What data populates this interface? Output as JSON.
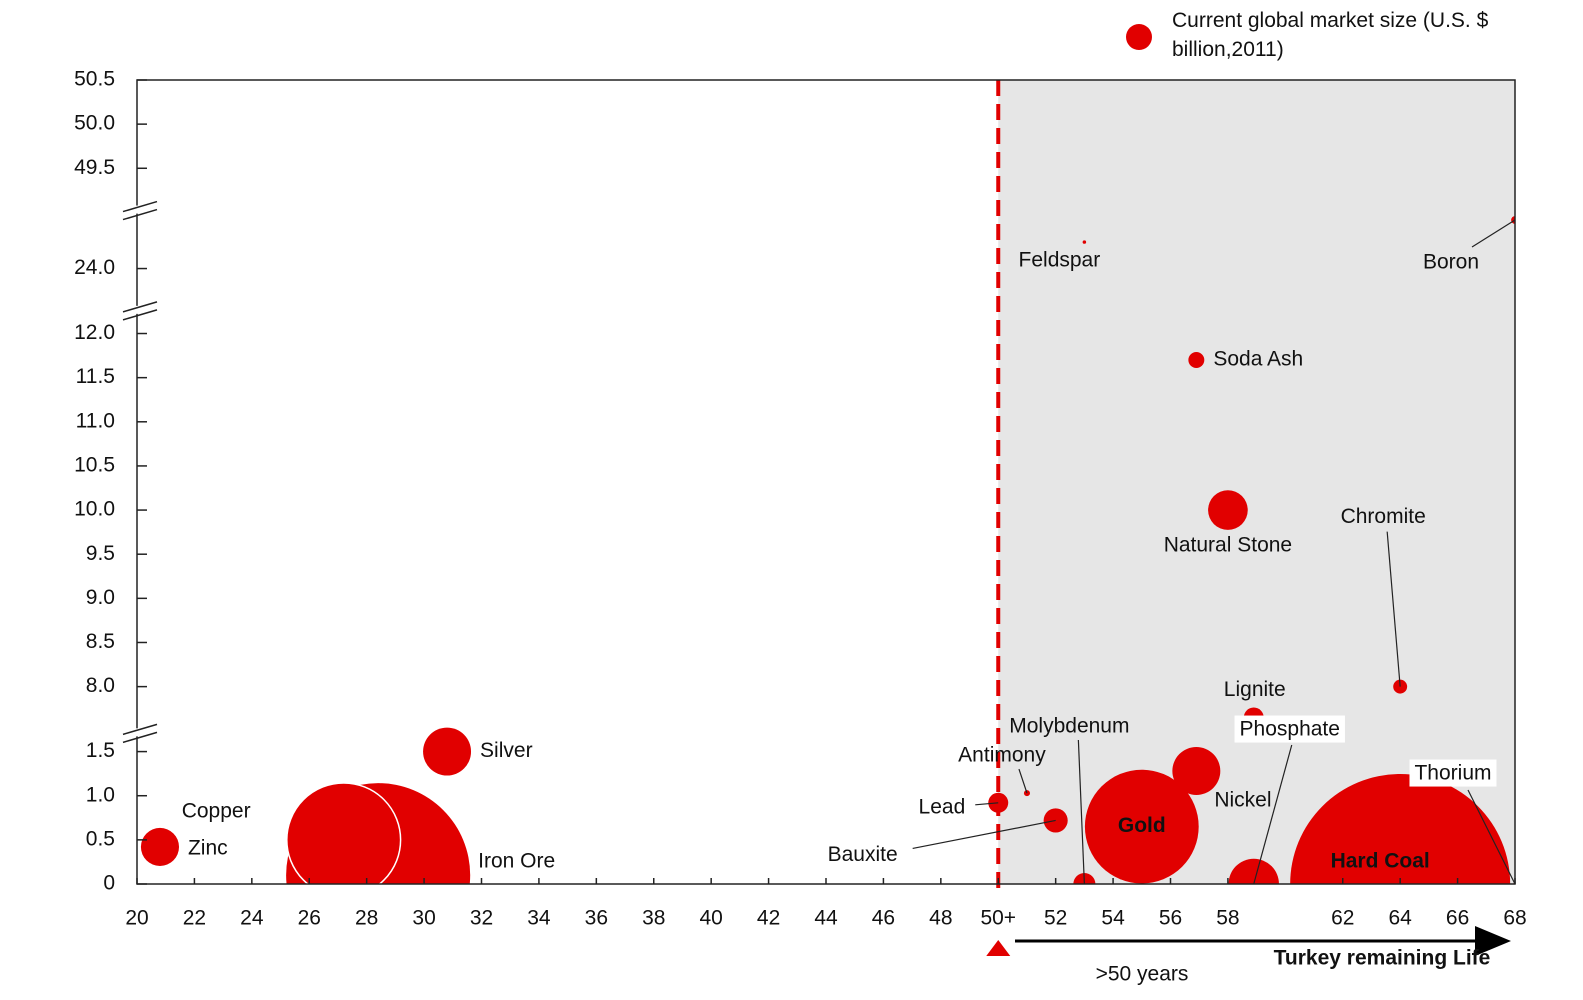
{
  "chart_data": {
    "type": "bubble",
    "series": [
      {
        "name": "Current global market size (U.S. $ billion,2011)",
        "color": "#e10000",
        "labels": [
          "Zinc",
          "Copper",
          "Iron Ore",
          "Silver",
          "Lead",
          "Antimony",
          "Bauxite",
          "Molybdenum",
          "Gold",
          "Nickel",
          "Lignite",
          "Phosphate",
          "Hard Coal",
          "Thorium",
          "Chromite",
          "Natural Stone",
          "Soda Ash",
          "Feldspar",
          "Boron"
        ],
        "x": [
          20.8,
          27.2,
          28.4,
          30.8,
          50,
          51,
          52,
          53,
          55,
          56.9,
          58.9,
          58.9,
          64,
          68,
          64,
          58,
          56.9,
          53,
          68
        ],
        "values": [
          0.42,
          0.5,
          0.1,
          1.5,
          0.92,
          1.03,
          0.72,
          0,
          0.65,
          1.28,
          7.65,
          0,
          0,
          0,
          8.0,
          10.0,
          11.7,
          24.3,
          24.55
        ],
        "sizes": [
          12,
          107,
          280,
          19,
          3.3,
          0.3,
          4.8,
          4,
          107,
          19,
          3.3,
          21,
          400,
          0.05,
          1.6,
          13,
          2.1,
          0.1,
          0.5
        ]
      }
    ],
    "xlim": [
      20,
      68
    ],
    "xticks": [
      20,
      22,
      24,
      26,
      28,
      30,
      32,
      34,
      36,
      38,
      40,
      42,
      44,
      46,
      48,
      {
        "value": 50,
        "label": "50+"
      },
      52,
      54,
      56,
      58,
      62,
      64,
      66,
      68
    ],
    "y_segments": [
      [
        0,
        1.65
      ],
      [
        7.55,
        12.2
      ],
      [
        23.6,
        24.6
      ],
      [
        49.1,
        50.5
      ]
    ],
    "yticks": [
      0,
      0.5,
      {
        "value": 1,
        "label": "1.0"
      },
      1.5,
      {
        "value": 8,
        "label": "8.0"
      },
      8.5,
      {
        "value": 9,
        "label": "9.0"
      },
      9.5,
      {
        "value": 10,
        "label": "10.0"
      },
      10.5,
      {
        "value": 11,
        "label": "11.0"
      },
      11.5,
      {
        "value": 12,
        "label": "12.0"
      },
      {
        "value": 24,
        "label": "24.0"
      },
      49.5,
      {
        "value": 50,
        "label": "50.0"
      },
      50.5
    ],
    "threshold_x": 50,
    "annotations": [
      ">50 years",
      "Turkey remaining Life"
    ]
  }
}
